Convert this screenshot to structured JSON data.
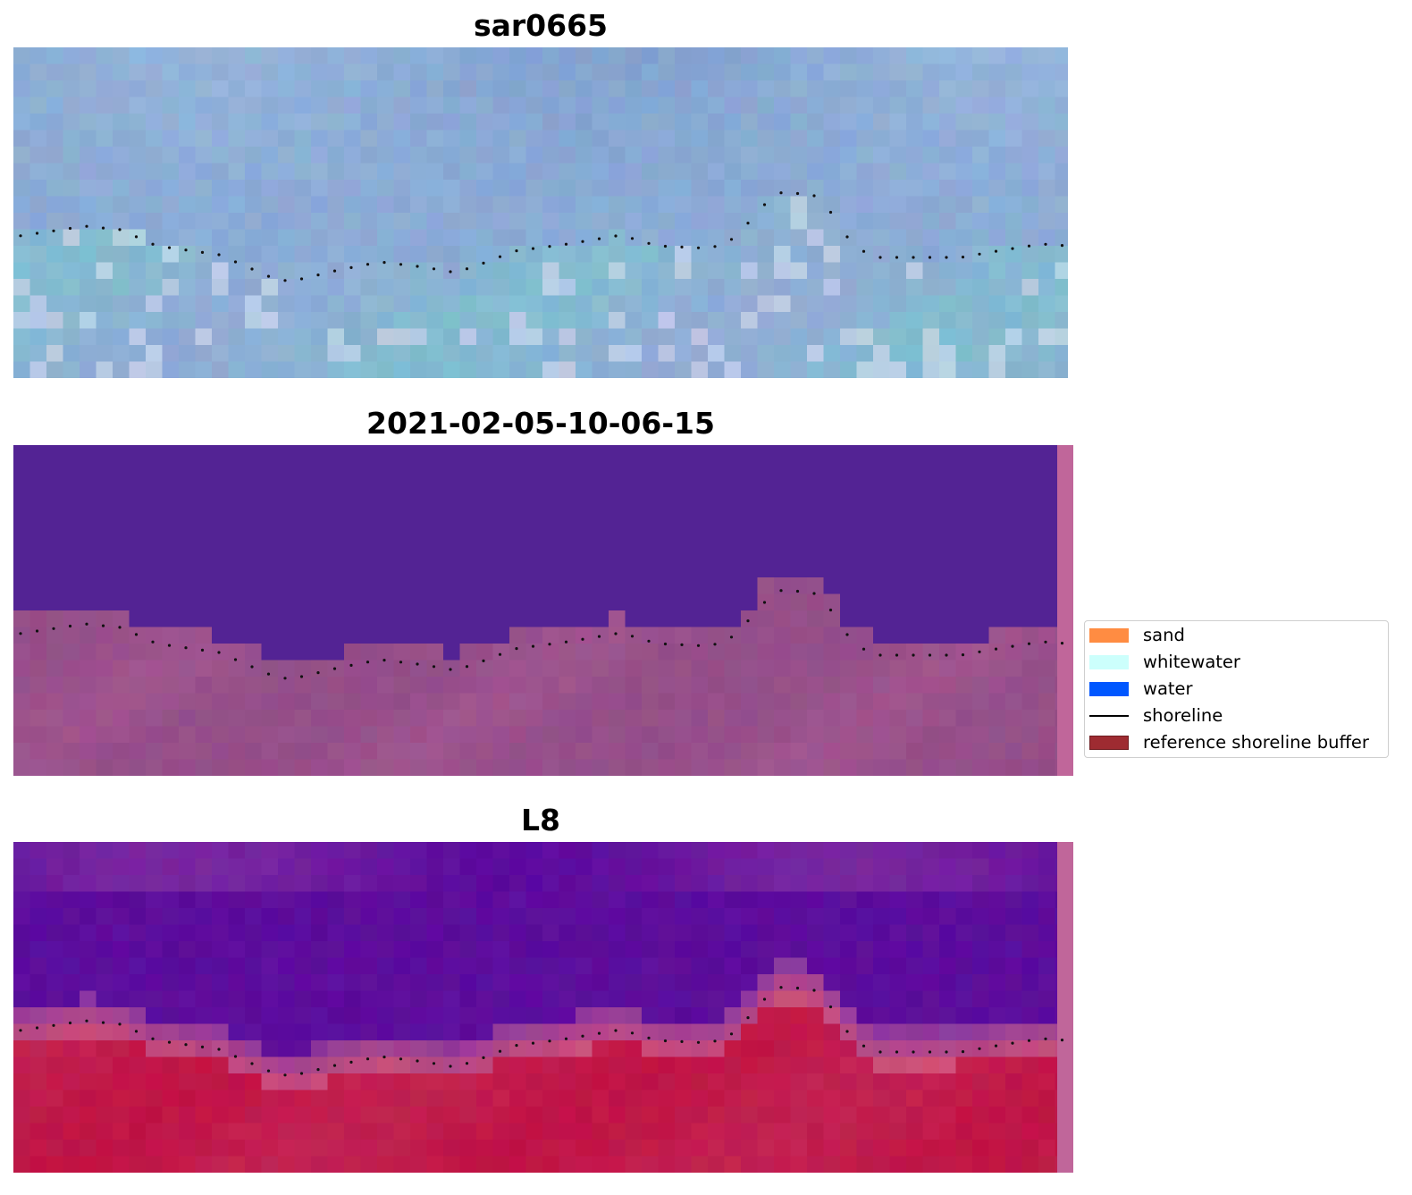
{
  "panels": [
    {
      "title": "sar0665",
      "image_kind": "rgb-satellite"
    },
    {
      "title": "2021-02-05-10-06-15",
      "image_kind": "classified-overlay"
    },
    {
      "title": "L8",
      "image_kind": "index-overlay"
    }
  ],
  "legend": {
    "items": [
      {
        "label": "sand",
        "type": "patch",
        "color": "#ff8c42"
      },
      {
        "label": "whitewater",
        "type": "patch",
        "color": "#ccfffc"
      },
      {
        "label": "water",
        "type": "patch",
        "color": "#0057ff"
      },
      {
        "label": "shoreline",
        "type": "line",
        "color": "#000000"
      },
      {
        "label": "reference shoreline buffer",
        "type": "patch",
        "color": "#9e2b31",
        "edge": "#6e1c20"
      }
    ]
  },
  "colors": {
    "sar_sky": "#9ebde0",
    "sar_water": "#83bcd0",
    "classified_water": "#532394",
    "classified_land": "#8e4c86",
    "index_water": "#5c0b9e",
    "index_land": "#c11f4f",
    "edge_strip": "#c0669a"
  }
}
